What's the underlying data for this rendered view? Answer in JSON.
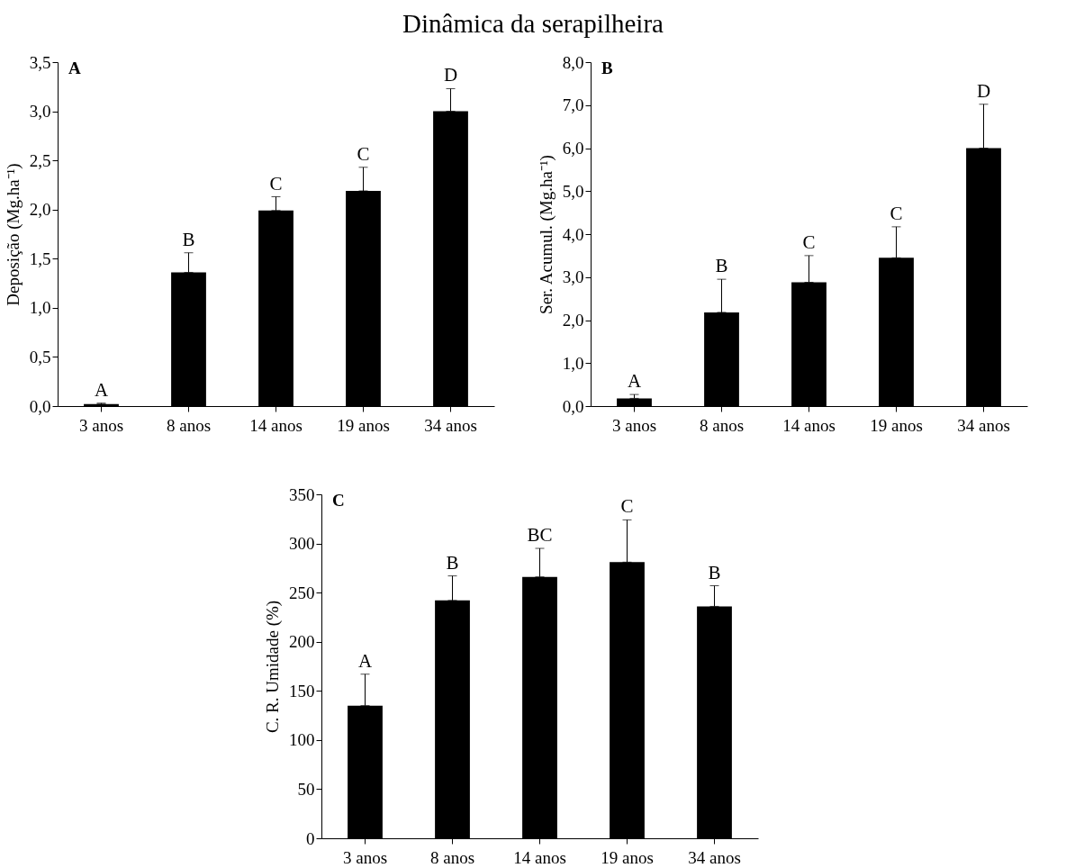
{
  "chart_data": [
    {
      "type": "bar",
      "title": "Dinâmica da serapilheira",
      "ylabel": "Deposição (Mg.ha⁻¹)",
      "categories": [
        "3 anos",
        "8 anos",
        "14 anos",
        "19 anos",
        "34 anos"
      ],
      "values": [
        0.02,
        1.36,
        1.99,
        2.19,
        3.0
      ],
      "color": "#000000",
      "errors": [
        [
          0.02,
          0.03
        ],
        [
          1.36,
          1.56
        ],
        [
          1.99,
          2.13
        ],
        [
          2.19,
          2.43
        ],
        [
          3.0,
          3.23
        ]
      ],
      "ylim": [
        0,
        3.5
      ],
      "yticks": [
        {
          "value": 0,
          "label": "0,0"
        },
        {
          "value": 0.5,
          "label": "0,5"
        },
        {
          "value": 1,
          "label": "1,0"
        },
        {
          "value": 1.5,
          "label": "1,5"
        },
        {
          "value": 2,
          "label": "2,0"
        },
        {
          "value": 2.5,
          "label": "2,5"
        },
        {
          "value": 3,
          "label": "3,0"
        },
        {
          "value": 3.5,
          "label": "3,5"
        }
      ],
      "annotations": [
        "A",
        {
          "text": "A",
          "x": "3 anos",
          "y": 0.03
        },
        {
          "text": "B",
          "x": "8 anos",
          "y": 1.56
        },
        {
          "text": "C",
          "x": "14 anos",
          "y": 2.13
        },
        {
          "text": "C",
          "x": "19 anos",
          "y": 2.43
        },
        {
          "text": "D",
          "x": "34 anos",
          "y": 3.23
        }
      ]
    },
    {
      "type": "bar",
      "ylabel": "Ser. Acumul. (Mg.ha⁻¹)",
      "categories": [
        "3 anos",
        "8 anos",
        "14 anos",
        "19 anos",
        "34 anos"
      ],
      "values": [
        0.18,
        2.18,
        2.88,
        3.45,
        6.0
      ],
      "color": "#000000",
      "errors": [
        [
          0.18,
          0.27
        ],
        [
          2.18,
          2.95
        ],
        [
          2.88,
          3.5
        ],
        [
          3.45,
          4.17
        ],
        [
          6.0,
          7.02
        ]
      ],
      "ylim": [
        0,
        8
      ],
      "yticks": [
        {
          "value": 0,
          "label": "0,0"
        },
        {
          "value": 1,
          "label": "1,0"
        },
        {
          "value": 2,
          "label": "2,0"
        },
        {
          "value": 3,
          "label": "3,0"
        },
        {
          "value": 4,
          "label": "4,0"
        },
        {
          "value": 5,
          "label": "5,0"
        },
        {
          "value": 6,
          "label": "6,0"
        },
        {
          "value": 7,
          "label": "7,0"
        },
        {
          "value": 8,
          "label": "8,0"
        }
      ],
      "annotations": [
        "B",
        {
          "text": "A",
          "x": "3 anos",
          "y": 0.27
        },
        {
          "text": "B",
          "x": "8 anos",
          "y": 2.95
        },
        {
          "text": "C",
          "x": "14 anos",
          "y": 3.5
        },
        {
          "text": "C",
          "x": "19 anos",
          "y": 4.17
        },
        {
          "text": "D",
          "x": "34 anos",
          "y": 7.02
        }
      ]
    },
    {
      "type": "bar",
      "ylabel": "C. R. Umidade  (%)",
      "categories": [
        "3 anos",
        "8 anos",
        "14 anos",
        "19 anos",
        "34 anos"
      ],
      "values": [
        135,
        242,
        266,
        281,
        236
      ],
      "color": "#000000",
      "errors": [
        [
          135,
          167
        ],
        [
          242,
          267
        ],
        [
          266,
          295
        ],
        [
          281,
          324
        ],
        [
          236,
          257
        ]
      ],
      "ylim": [
        0,
        350
      ],
      "yticks": [
        0,
        50,
        100,
        150,
        200,
        250,
        300,
        350
      ],
      "annotations": [
        "C",
        {
          "text": "A",
          "x": "3 anos",
          "y": 167
        },
        {
          "text": "B",
          "x": "8 anos",
          "y": 267
        },
        {
          "text": "BC",
          "x": "14 anos",
          "y": 295
        },
        {
          "text": "C",
          "x": "19 anos",
          "y": 324
        },
        {
          "text": "B",
          "x": "34 anos",
          "y": 257
        }
      ]
    }
  ]
}
